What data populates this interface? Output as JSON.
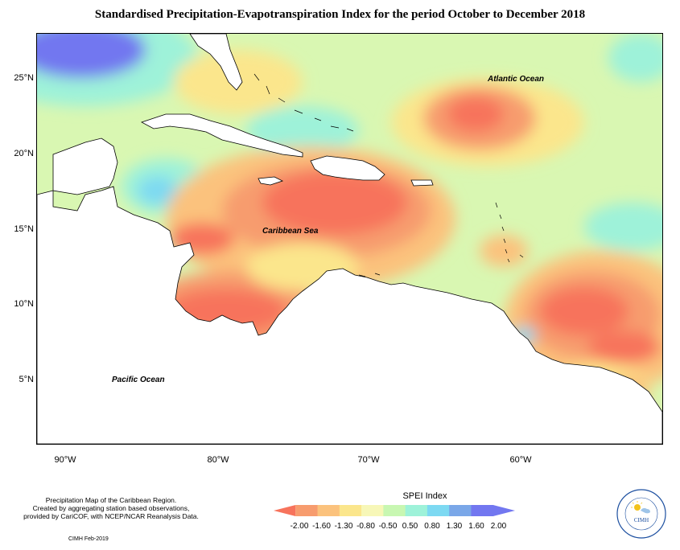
{
  "title": "Standardised Precipitation-Evapotranspiration Index for the period October to December 2018",
  "map": {
    "latitude_labels": [
      "25°N",
      "20°N",
      "15°N",
      "10°N",
      "5°N"
    ],
    "longitude_labels": [
      "90°W",
      "80°W",
      "70°W",
      "60°W"
    ],
    "place_labels": {
      "atlantic": "Atlantic Ocean",
      "caribbean": "Caribbean Sea",
      "pacific": "Pacific Ocean"
    }
  },
  "legend": {
    "title": "SPEI Index",
    "values": [
      "-2.00",
      "-1.60",
      "-1.30",
      "-0.80",
      "-0.50",
      "0.50",
      "0.80",
      "1.30",
      "1.60",
      "2.00"
    ],
    "colors": [
      "#f7735c",
      "#f79c6e",
      "#fbc27d",
      "#fbe68c",
      "#f7f7b8",
      "#c8f7b2",
      "#9ef2d9",
      "#7dd9f2",
      "#7aa7e8",
      "#7277f0"
    ]
  },
  "footer": {
    "line1": "Precipitation Map of the Caribbean Region.",
    "line2": "Created by aggregating station based observations,",
    "line3": "provided by CariCOF, with NCEP/NCAR Reanalysis Data.",
    "credit": "CIMH Feb-2019"
  },
  "logo": {
    "text": "CIMH"
  }
}
